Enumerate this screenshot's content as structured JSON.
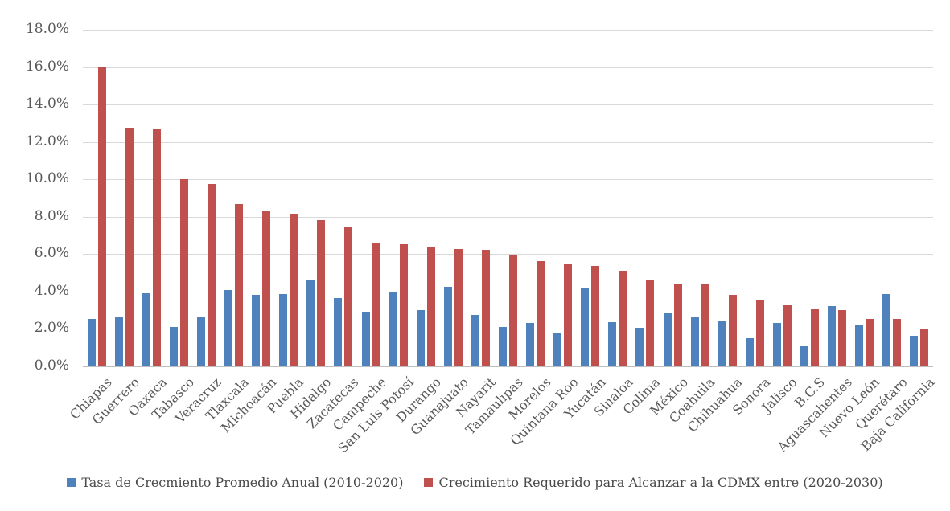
{
  "chart_data": {
    "type": "bar",
    "title": "",
    "xlabel": "",
    "ylabel": "",
    "ylim": [
      0,
      18
    ],
    "ytick_step": 2,
    "ytick_suffix": "%",
    "grid": true,
    "legend_position": "bottom",
    "categories": [
      "Chiapas",
      "Guerrero",
      "Oaxaca",
      "Tabasco",
      "Veracruz",
      "Tlaxcala",
      "Michoacán",
      "Puebla",
      "Hidalgo",
      "Zacatecas",
      "Campeche",
      "San Luis Potosí",
      "Durango",
      "Guanajuato",
      "Nayarit",
      "Tamaulipas",
      "Morelos",
      "Quintana Roo",
      "Yucatán",
      "Sinaloa",
      "Colima",
      "México",
      "Coahuila",
      "Chihuahua",
      "Sonora",
      "Jalisco",
      "B.C.S",
      "Aguascalientes",
      "Nuevo León",
      "Querétaro",
      "Baja California"
    ],
    "series": [
      {
        "name": "Tasa de Crecmiento Promedio Anual (2010-2020)",
        "color": "#4F81BD",
        "values": [
          2.5,
          2.65,
          3.9,
          2.1,
          2.6,
          4.05,
          3.8,
          3.85,
          4.6,
          3.65,
          2.9,
          3.95,
          3.0,
          4.25,
          2.75,
          2.1,
          2.3,
          1.8,
          4.2,
          2.35,
          2.05,
          2.8,
          2.65,
          2.4,
          1.5,
          2.3,
          1.05,
          3.2,
          2.2,
          3.85,
          1.6
        ]
      },
      {
        "name": "Crecimiento Requerido para Alcanzar a la CDMX entre (2020-2030)",
        "color": "#C0504D",
        "values": [
          16.0,
          12.75,
          12.7,
          10.0,
          9.75,
          8.65,
          8.3,
          8.15,
          7.8,
          7.4,
          6.6,
          6.5,
          6.4,
          6.25,
          6.2,
          5.95,
          5.6,
          5.45,
          5.35,
          5.1,
          4.6,
          4.4,
          4.35,
          3.8,
          3.55,
          3.3,
          3.05,
          3.0,
          2.5,
          2.5,
          1.95
        ]
      }
    ],
    "colors": {
      "gridline": "#D9D9D9",
      "axis_line": "#BFBFBF",
      "tick_label": "#595959",
      "legend_text": "#4A4A4A",
      "background": "#FFFFFF"
    }
  }
}
